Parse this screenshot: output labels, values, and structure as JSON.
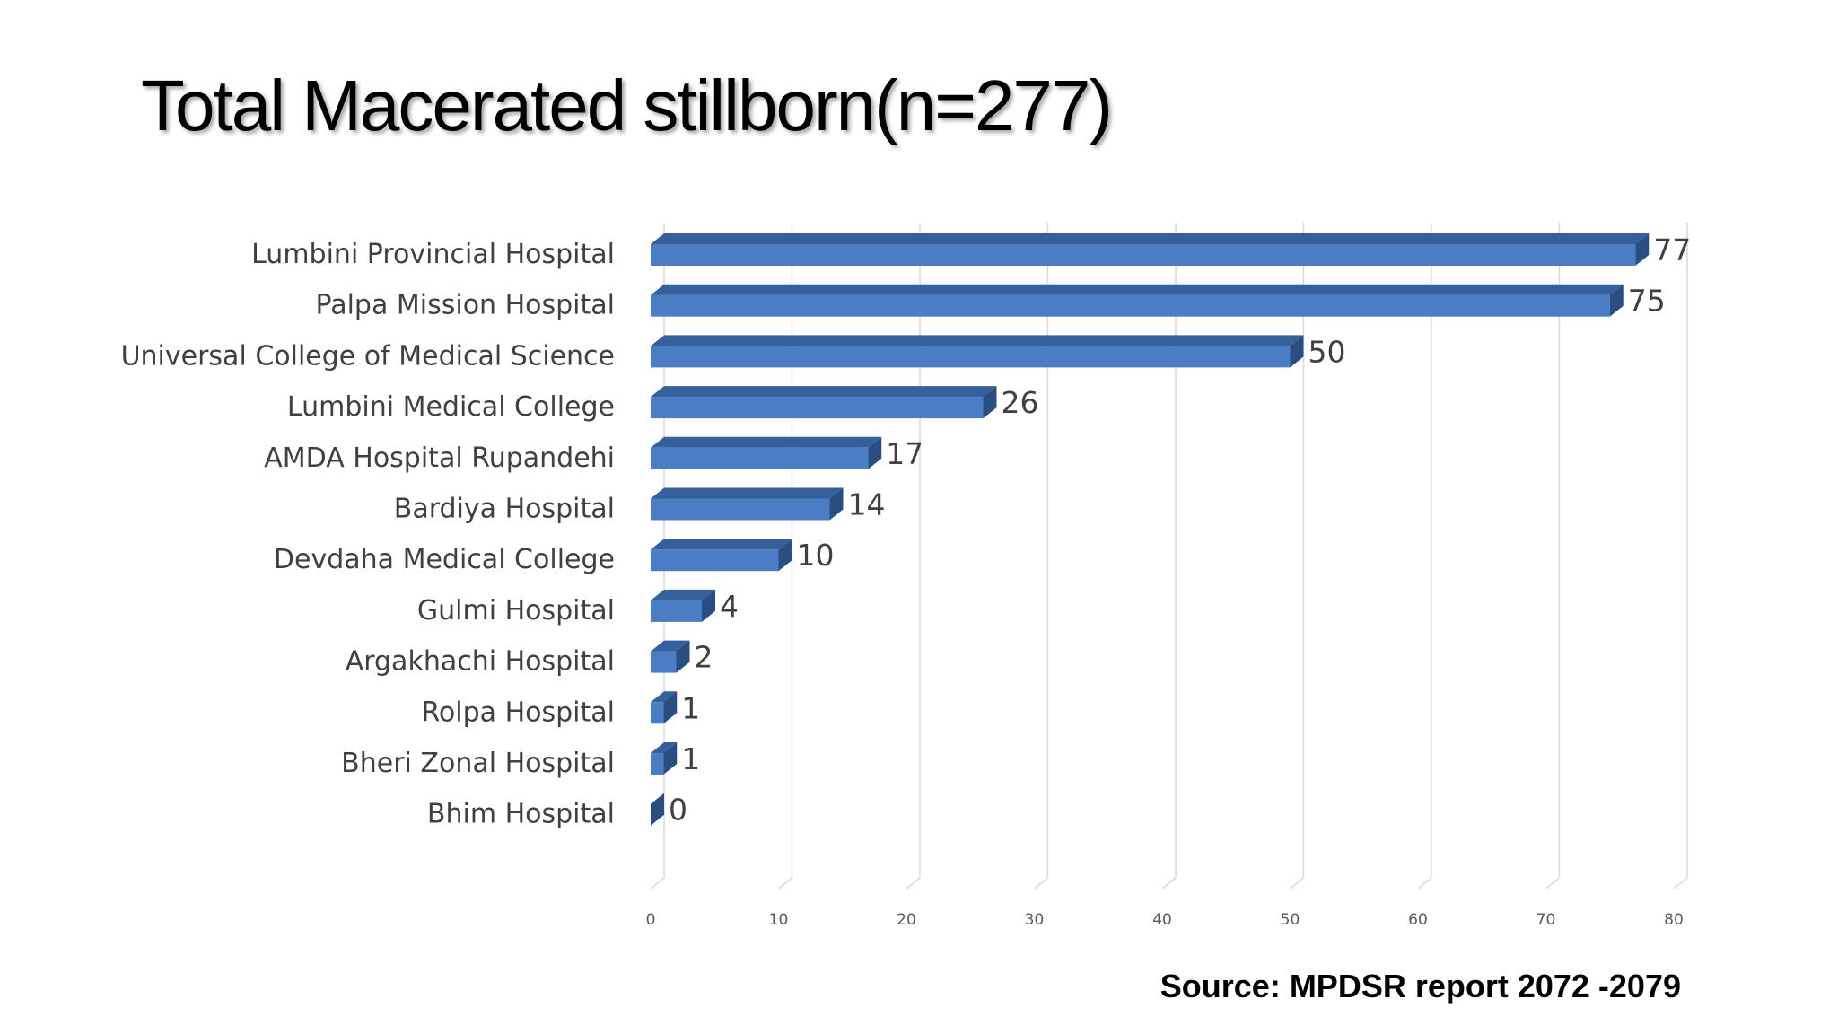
{
  "slide": {
    "title": "Total Macerated stillborn(n=277)",
    "source": "Source: MPDSR report 2072 -2079"
  },
  "colors": {
    "bar_front": "#4A7EC4",
    "bar_top": "#35609B",
    "bar_side": "#2A4E82",
    "grid": "#D9D9D9",
    "label": "#404040"
  },
  "chart_data": {
    "type": "bar",
    "orientation": "horizontal",
    "style": "3d",
    "title": "Total Macerated stillborn(n=277)",
    "categories": [
      "Lumbini Provincial Hospital",
      "Palpa Mission Hospital",
      "Universal College of Medical Science",
      "Lumbini Medical College",
      "AMDA Hospital Rupandehi",
      "Bardiya Hospital",
      "Devdaha Medical College",
      "Gulmi Hospital",
      "Argakhachi Hospital",
      "Rolpa Hospital",
      "Bheri Zonal Hospital",
      "Bhim Hospital"
    ],
    "values": [
      77,
      75,
      50,
      26,
      17,
      14,
      10,
      4,
      2,
      1,
      1,
      0
    ],
    "xlim": [
      0,
      80
    ],
    "xticks": [
      0,
      10,
      20,
      30,
      40,
      50,
      60,
      70,
      80
    ],
    "grid": true,
    "legend": "none",
    "xlabel": "",
    "ylabel": ""
  }
}
